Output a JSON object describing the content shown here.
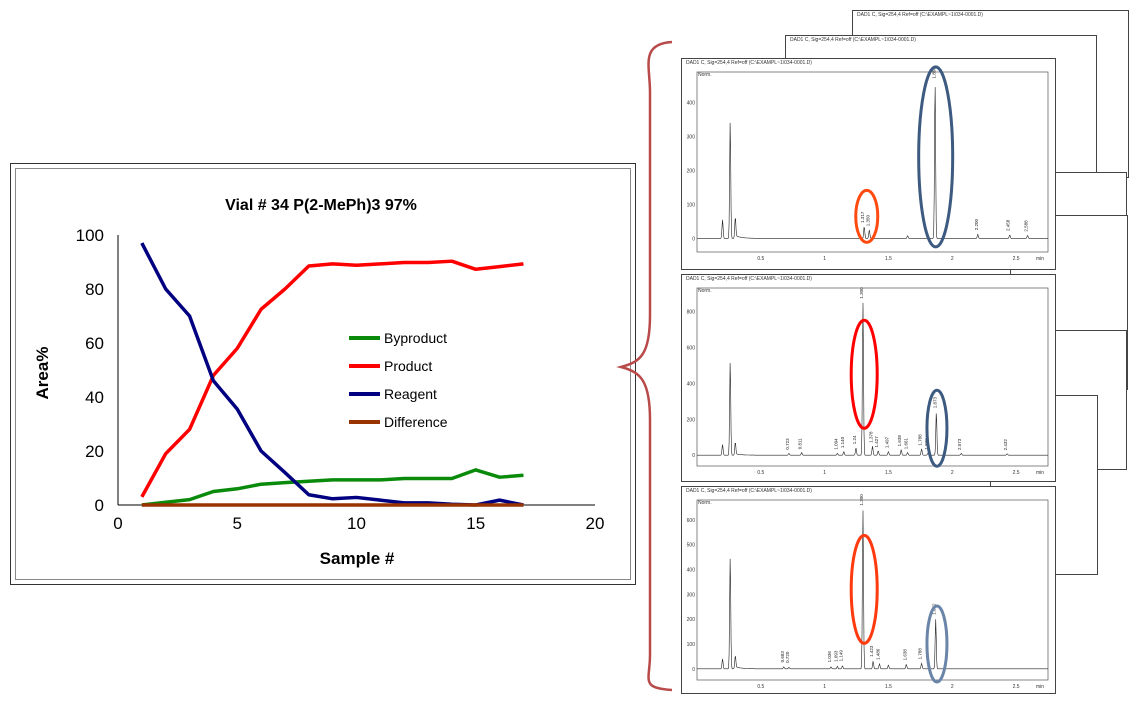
{
  "main_chart": {
    "title": "Vial # 34  P(2-MePh)3 97%",
    "xlabel": "Sample #",
    "ylabel": "Area%",
    "legend": [
      "Byproduct",
      "Product",
      "Reagent",
      "Difference"
    ]
  },
  "chart_data": [
    {
      "type": "line",
      "title": "Vial # 34  P(2-MePh)3 97%",
      "xlabel": "Sample #",
      "ylabel": "Area%",
      "xlim": [
        0,
        20
      ],
      "ylim": [
        0,
        100
      ],
      "xticks": [
        0,
        5,
        10,
        15,
        20
      ],
      "yticks": [
        0,
        20,
        40,
        60,
        80,
        100
      ],
      "grid": false,
      "legend_position": "right-center",
      "x": [
        1,
        2,
        3,
        4,
        5,
        6,
        7,
        8,
        9,
        10,
        11,
        12,
        13,
        14,
        15,
        16,
        17
      ],
      "series": [
        {
          "name": "Byproduct",
          "color": "#0a8a0a",
          "values": [
            0,
            1,
            2,
            5,
            6,
            7.7,
            8.3,
            8.8,
            9.3,
            9.3,
            9.3,
            9.8,
            9.8,
            9.8,
            13,
            10.3,
            11
          ]
        },
        {
          "name": "Product",
          "color": "#ff0000",
          "values": [
            3,
            19,
            28,
            48,
            58,
            72.5,
            80,
            88.5,
            89.3,
            88.8,
            89.3,
            89.8,
            89.8,
            90.3,
            87.3,
            88.3,
            89.3
          ]
        },
        {
          "name": "Reagent",
          "color": "#000080",
          "values": [
            97,
            80,
            70,
            46,
            35.5,
            20,
            12,
            3.8,
            2.3,
            2.8,
            1.8,
            0.8,
            0.8,
            0.3,
            0,
            1.8,
            0
          ]
        },
        {
          "name": "Difference",
          "color": "#993300",
          "values": [
            0,
            0,
            0,
            0,
            0,
            0,
            0,
            0,
            0,
            0,
            0,
            0,
            0,
            0,
            0,
            0,
            0
          ]
        }
      ]
    },
    {
      "type": "line",
      "header": "DAD1 C, Sig=254,4 Ref=off (C:\\EXAMPL~1\\034-0001.D)",
      "y_unit": "Norm.",
      "x_unit": "min",
      "xlim": [
        0,
        2.75
      ],
      "ylim": [
        -40,
        490
      ],
      "xticks": [
        "0.5",
        "1",
        "1.5",
        "2",
        "2.5"
      ],
      "yticks": [
        "0",
        "100",
        "200",
        "300",
        "400"
      ],
      "peaks": [
        {
          "x": 0.2,
          "y": 55
        },
        {
          "x": 0.26,
          "y": 345
        },
        {
          "x": 0.3,
          "y": 60
        },
        {
          "x": 1.31,
          "y": 35
        },
        {
          "x": 1.35,
          "y": 25
        },
        {
          "x": 1.65,
          "y": 8
        },
        {
          "x": 1.865,
          "y": 460
        },
        {
          "x": 2.2,
          "y": 12
        },
        {
          "x": 2.45,
          "y": 10
        },
        {
          "x": 2.59,
          "y": 9
        }
      ],
      "peak_labels": [
        {
          "x": 1.31,
          "y": 40,
          "text": "1.317"
        },
        {
          "x": 1.35,
          "y": 30,
          "text": "1.350"
        },
        {
          "x": 1.87,
          "y": 465,
          "text": "1.866"
        },
        {
          "x": 2.2,
          "y": 18,
          "text": "2.200"
        },
        {
          "x": 2.45,
          "y": 16,
          "text": "2.458"
        },
        {
          "x": 2.59,
          "y": 14,
          "text": "2.588"
        }
      ],
      "ovals": [
        {
          "x": 1.33,
          "y": 65,
          "color": "#ff4a10"
        },
        {
          "x": 1.87,
          "y": 240,
          "color": "#3d5a80"
        }
      ]
    },
    {
      "type": "line",
      "header": "DAD1 C, Sig=254,4 Ref=off (C:\\EXAMPL~1\\034-0001.D)",
      "y_unit": "Norm.",
      "x_unit": "min",
      "xlim": [
        0,
        2.75
      ],
      "ylim": [
        -60,
        930
      ],
      "xticks": [
        "0.5",
        "1",
        "1.5",
        "2",
        "2.5"
      ],
      "yticks": [
        "0",
        "200",
        "400",
        "600",
        "800"
      ],
      "peaks": [
        {
          "x": 0.2,
          "y": 60
        },
        {
          "x": 0.26,
          "y": 520
        },
        {
          "x": 0.3,
          "y": 70
        },
        {
          "x": 0.72,
          "y": 10
        },
        {
          "x": 0.82,
          "y": 15
        },
        {
          "x": 1.1,
          "y": 10
        },
        {
          "x": 1.15,
          "y": 20
        },
        {
          "x": 1.245,
          "y": 40
        },
        {
          "x": 1.3,
          "y": 850
        },
        {
          "x": 1.375,
          "y": 50
        },
        {
          "x": 1.42,
          "y": 25
        },
        {
          "x": 1.5,
          "y": 20
        },
        {
          "x": 1.6,
          "y": 30
        },
        {
          "x": 1.65,
          "y": 15
        },
        {
          "x": 1.76,
          "y": 35
        },
        {
          "x": 1.81,
          "y": 12
        },
        {
          "x": 1.875,
          "y": 240
        },
        {
          "x": 2.07,
          "y": 10
        },
        {
          "x": 2.43,
          "y": 8
        }
      ],
      "peak_labels": [
        {
          "x": 1.3,
          "y": 860,
          "text": "1.300"
        },
        {
          "x": 1.875,
          "y": 250,
          "text": "1.873"
        },
        {
          "x": 0.72,
          "y": 20,
          "text": "0.723"
        },
        {
          "x": 0.82,
          "y": 22,
          "text": "0.811"
        },
        {
          "x": 1.1,
          "y": 20,
          "text": "1.094"
        },
        {
          "x": 1.15,
          "y": 28,
          "text": "1.140"
        },
        {
          "x": 1.245,
          "y": 50,
          "text": "1.24"
        },
        {
          "x": 1.375,
          "y": 58,
          "text": "1.378"
        },
        {
          "x": 1.42,
          "y": 32,
          "text": "1.427"
        },
        {
          "x": 1.5,
          "y": 28,
          "text": "1.497"
        },
        {
          "x": 1.6,
          "y": 38,
          "text": "1.638"
        },
        {
          "x": 1.65,
          "y": 22,
          "text": "1.661"
        },
        {
          "x": 1.76,
          "y": 42,
          "text": "1.788"
        },
        {
          "x": 1.81,
          "y": 20,
          "text": "1.888"
        },
        {
          "x": 2.07,
          "y": 18,
          "text": "2.073"
        },
        {
          "x": 2.43,
          "y": 16,
          "text": "2.432"
        }
      ],
      "ovals": [
        {
          "x": 1.31,
          "y": 450,
          "color": "#ff0000"
        },
        {
          "x": 1.88,
          "y": 150,
          "color": "#3d5a80"
        }
      ]
    },
    {
      "type": "line",
      "header": "DAD1 C, Sig=254,4 Ref=off (C:\\EXAMPL~1\\034-0001.D)",
      "y_unit": "Norm.",
      "x_unit": "min",
      "xlim": [
        0,
        2.75
      ],
      "ylim": [
        -45,
        680
      ],
      "xticks": [
        "0.5",
        "1",
        "1.5",
        "2",
        "2.5"
      ],
      "yticks": [
        "0",
        "100",
        "200",
        "300",
        "400",
        "500",
        "600"
      ],
      "peaks": [
        {
          "x": 0.2,
          "y": 40
        },
        {
          "x": 0.26,
          "y": 450
        },
        {
          "x": 0.3,
          "y": 50
        },
        {
          "x": 0.68,
          "y": 8
        },
        {
          "x": 0.72,
          "y": 6
        },
        {
          "x": 1.05,
          "y": 8
        },
        {
          "x": 1.1,
          "y": 10
        },
        {
          "x": 1.14,
          "y": 12
        },
        {
          "x": 1.3,
          "y": 640
        },
        {
          "x": 1.38,
          "y": 30
        },
        {
          "x": 1.43,
          "y": 20
        },
        {
          "x": 1.5,
          "y": 15
        },
        {
          "x": 1.64,
          "y": 18
        },
        {
          "x": 1.76,
          "y": 22
        },
        {
          "x": 1.87,
          "y": 200
        }
      ],
      "peak_labels": [
        {
          "x": 1.3,
          "y": 650,
          "text": "1.300"
        },
        {
          "x": 1.87,
          "y": 210,
          "text": "1.872"
        },
        {
          "x": 0.68,
          "y": 18,
          "text": "0.683"
        },
        {
          "x": 0.72,
          "y": 16,
          "text": "0.720"
        },
        {
          "x": 1.05,
          "y": 18,
          "text": "1.036"
        },
        {
          "x": 1.1,
          "y": 20,
          "text": "1.093"
        },
        {
          "x": 1.14,
          "y": 22,
          "text": "1.149"
        },
        {
          "x": 1.38,
          "y": 40,
          "text": "1.423"
        },
        {
          "x": 1.43,
          "y": 28,
          "text": "1.486"
        },
        {
          "x": 1.64,
          "y": 26,
          "text": "1.638"
        },
        {
          "x": 1.76,
          "y": 30,
          "text": "1.788"
        }
      ],
      "ovals": [
        {
          "x": 1.31,
          "y": 320,
          "color": "#ff3a0e"
        },
        {
          "x": 1.88,
          "y": 100,
          "color": "#6a85a8"
        }
      ]
    }
  ],
  "connector": {
    "brace_color": "#b84a4a"
  },
  "back_pages": {
    "header_a": "DAD1 C, Sig=254,4 Ref=off (C:\\EXAMPL~1\\034-0001.D)",
    "header_b": "DAD1 C, Sig=254,4 Ref=off (C:\\EXAMPL~1\\034-0001.D)"
  }
}
